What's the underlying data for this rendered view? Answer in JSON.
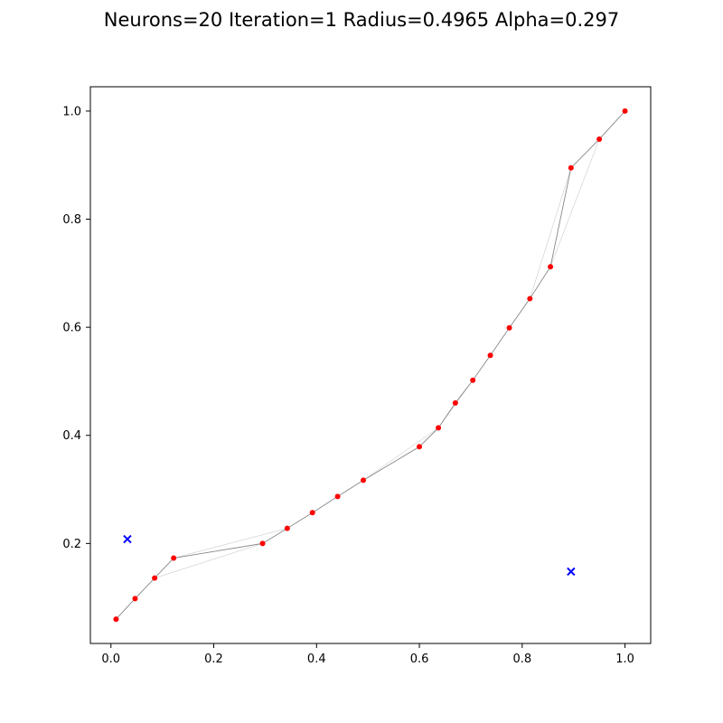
{
  "chart_data": {
    "type": "scatter",
    "title": "Neurons=20 Iteration=1 Radius=0.4965 Alpha=0.297",
    "xlabel": "",
    "ylabel": "",
    "xlim": [
      -0.04,
      1.05
    ],
    "ylim": [
      0.015,
      1.045
    ],
    "x_ticks": [
      {
        "value": 0.0,
        "label": "0.0"
      },
      {
        "value": 0.2,
        "label": "0.2"
      },
      {
        "value": 0.4,
        "label": "0.4"
      },
      {
        "value": 0.6,
        "label": "0.6"
      },
      {
        "value": 0.8,
        "label": "0.8"
      },
      {
        "value": 1.0,
        "label": "1.0"
      }
    ],
    "y_ticks": [
      {
        "value": 0.2,
        "label": "0.2"
      },
      {
        "value": 0.4,
        "label": "0.4"
      },
      {
        "value": 0.6,
        "label": "0.6"
      },
      {
        "value": 0.8,
        "label": "0.8"
      },
      {
        "value": 1.0,
        "label": "1.0"
      }
    ],
    "grid": false,
    "neurons": {
      "color": "#ff0000",
      "points": [
        [
          0.01,
          0.06
        ],
        [
          0.047,
          0.098
        ],
        [
          0.085,
          0.136
        ],
        [
          0.122,
          0.173
        ],
        [
          0.295,
          0.2
        ],
        [
          0.343,
          0.228
        ],
        [
          0.392,
          0.257
        ],
        [
          0.441,
          0.287
        ],
        [
          0.491,
          0.317
        ],
        [
          0.6,
          0.379
        ],
        [
          0.637,
          0.414
        ],
        [
          0.67,
          0.46
        ],
        [
          0.704,
          0.502
        ],
        [
          0.738,
          0.548
        ],
        [
          0.775,
          0.599
        ],
        [
          0.815,
          0.653
        ],
        [
          0.855,
          0.712
        ],
        [
          0.895,
          0.895
        ],
        [
          0.95,
          0.948
        ],
        [
          1.0,
          1.0
        ]
      ]
    },
    "connections": {
      "color": "#888888",
      "strong": [
        [
          0,
          1
        ],
        [
          1,
          2
        ],
        [
          2,
          3
        ],
        [
          3,
          4
        ],
        [
          4,
          5
        ],
        [
          5,
          6
        ],
        [
          6,
          7
        ],
        [
          7,
          8
        ],
        [
          8,
          9
        ],
        [
          9,
          10
        ],
        [
          10,
          11
        ],
        [
          11,
          12
        ],
        [
          12,
          13
        ],
        [
          13,
          14
        ],
        [
          14,
          15
        ],
        [
          15,
          16
        ],
        [
          16,
          17
        ],
        [
          17,
          18
        ],
        [
          18,
          19
        ]
      ],
      "faint": [
        [
          2,
          4
        ],
        [
          3,
          5
        ],
        [
          8,
          10
        ],
        [
          15,
          17
        ],
        [
          16,
          18
        ],
        [
          10,
          12
        ]
      ]
    },
    "samples": {
      "color": "#0000ff",
      "points": [
        [
          0.032,
          0.208
        ],
        [
          0.895,
          0.148
        ]
      ]
    }
  }
}
